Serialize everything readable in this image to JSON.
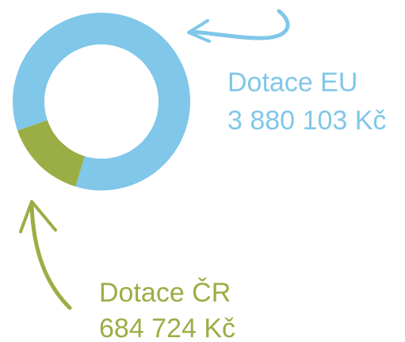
{
  "chart_data": {
    "type": "donut",
    "categories": [
      "Dotace EU",
      "Dotace ČR"
    ],
    "values": [
      3880103,
      684724
    ],
    "value_labels": [
      "3 880 103 Kč",
      "684 724 Kč"
    ],
    "colors": [
      "#80c7e9",
      "#9aae45"
    ]
  }
}
